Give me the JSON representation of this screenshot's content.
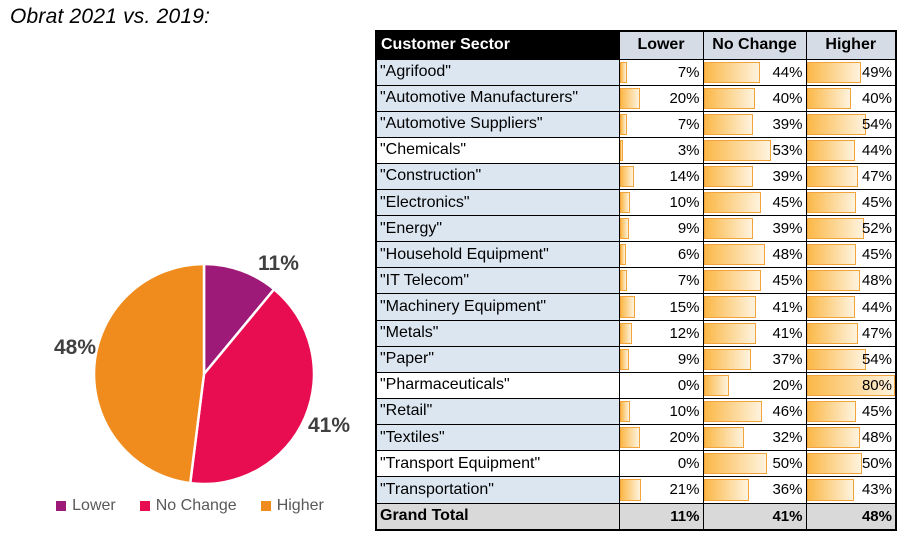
{
  "title": "Obrat 2021 vs. 2019:",
  "colors": {
    "lower": "#9E1A78",
    "no_change": "#E80D50",
    "higher": "#F08C1E",
    "bar_border": "#F2A33C",
    "bar_fill_start": "#FBB848",
    "bar_fill_end": "#FEF3DE",
    "row_fill": "#DCE6F1",
    "header_fill": "#D6DCE5",
    "header_sector_fill": "#000000",
    "grand_total_fill": "#D9D9D9",
    "pie_label_text": "#404040",
    "legend_text": "#595959"
  },
  "chart_data": [
    {
      "type": "pie",
      "title": "Obrat 2021 vs. 2019",
      "labels": [
        "Lower",
        "No Change",
        "Higher"
      ],
      "values": [
        11,
        41,
        48
      ],
      "data_labels": [
        "11%",
        "41%",
        "48%"
      ],
      "colors": [
        "#9E1A78",
        "#E80D50",
        "#F08C1E"
      ],
      "start_angle_deg": 0,
      "direction": "clockwise",
      "legend_position": "bottom"
    },
    {
      "type": "table",
      "columns": [
        "Customer Sector",
        "Lower",
        "No Change",
        "Higher"
      ],
      "bar_scale_max": 80,
      "rows": [
        {
          "sector": "\"Agrifood\"",
          "values": [
            7,
            44,
            49
          ],
          "white_bg": false
        },
        {
          "sector": "\"Automotive Manufacturers\"",
          "values": [
            20,
            40,
            40
          ],
          "white_bg": false
        },
        {
          "sector": "\"Automotive Suppliers\"",
          "values": [
            7,
            39,
            54
          ],
          "white_bg": false
        },
        {
          "sector": "\"Chemicals\"",
          "values": [
            3,
            53,
            44
          ],
          "white_bg": true
        },
        {
          "sector": "\"Construction\"",
          "values": [
            14,
            39,
            47
          ],
          "white_bg": false
        },
        {
          "sector": "\"Electronics\"",
          "values": [
            10,
            45,
            45
          ],
          "white_bg": false
        },
        {
          "sector": "\"Energy\"",
          "values": [
            9,
            39,
            52
          ],
          "white_bg": false
        },
        {
          "sector": "\"Household Equipment\"",
          "values": [
            6,
            48,
            45
          ],
          "white_bg": false
        },
        {
          "sector": "\"IT Telecom\"",
          "values": [
            7,
            45,
            48
          ],
          "white_bg": false
        },
        {
          "sector": "\"Machinery Equipment\"",
          "values": [
            15,
            41,
            44
          ],
          "white_bg": false
        },
        {
          "sector": "\"Metals\"",
          "values": [
            12,
            41,
            47
          ],
          "white_bg": false
        },
        {
          "sector": "\"Paper\"",
          "values": [
            9,
            37,
            54
          ],
          "white_bg": false
        },
        {
          "sector": "\"Pharmaceuticals\"",
          "values": [
            0,
            20,
            80
          ],
          "white_bg": true
        },
        {
          "sector": "\"Retail\"",
          "values": [
            10,
            46,
            45
          ],
          "white_bg": false
        },
        {
          "sector": "\"Textiles\"",
          "values": [
            20,
            32,
            48
          ],
          "white_bg": false
        },
        {
          "sector": "\"Transport Equipment\"",
          "values": [
            0,
            50,
            50
          ],
          "white_bg": true
        },
        {
          "sector": "\"Transportation\"",
          "values": [
            21,
            36,
            43
          ],
          "white_bg": false
        }
      ],
      "grand_total": {
        "label": "Grand Total",
        "values": [
          11,
          41,
          48
        ]
      }
    }
  ]
}
